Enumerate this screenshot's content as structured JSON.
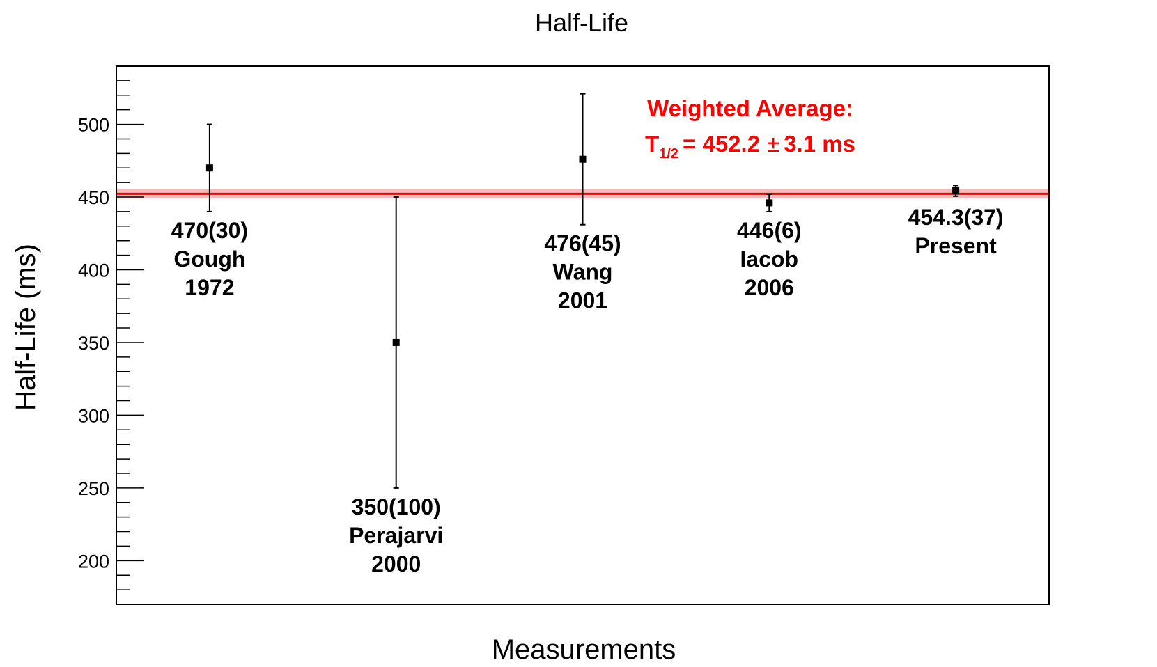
{
  "chart_data": {
    "type": "scatter",
    "title": "Half-Life",
    "xlabel": "Measurements",
    "ylabel": "Half-Life (ms)",
    "ylim": [
      170,
      540
    ],
    "yticks": [
      200,
      250,
      300,
      350,
      400,
      450,
      500
    ],
    "ytick_labels": [
      "200",
      "250",
      "300",
      "350",
      "400",
      "450",
      "500"
    ],
    "points": [
      {
        "value": 470,
        "error": 30,
        "label_lines": [
          "470(30)",
          "Gough",
          "1972"
        ],
        "label_pos": "below"
      },
      {
        "value": 350,
        "error": 100,
        "label_lines": [
          "350(100)",
          "Perajarvi",
          "2000"
        ],
        "label_pos": "below"
      },
      {
        "value": 476,
        "error": 45,
        "label_lines": [
          "476(45)",
          "Wang",
          "2001"
        ],
        "label_pos": "below"
      },
      {
        "value": 446,
        "error": 6,
        "label_lines": [
          "446(6)",
          "Iacob",
          "2006"
        ],
        "label_pos": "below"
      },
      {
        "value": 454.3,
        "error": 3.7,
        "label_lines": [
          "454.3(37)",
          "Present"
        ],
        "label_pos": "below"
      }
    ],
    "weighted_average": {
      "value": 452.2,
      "error": 3.1,
      "color": "#ff0000",
      "band_color": "#f4a6a6",
      "heading": "Weighted Average:",
      "symbol_main": "T",
      "symbol_sub": "1/2",
      "value_text": "= 452.2",
      "pm": "±",
      "error_text": "3.1 ms"
    },
    "grid": false,
    "legend": "none"
  }
}
